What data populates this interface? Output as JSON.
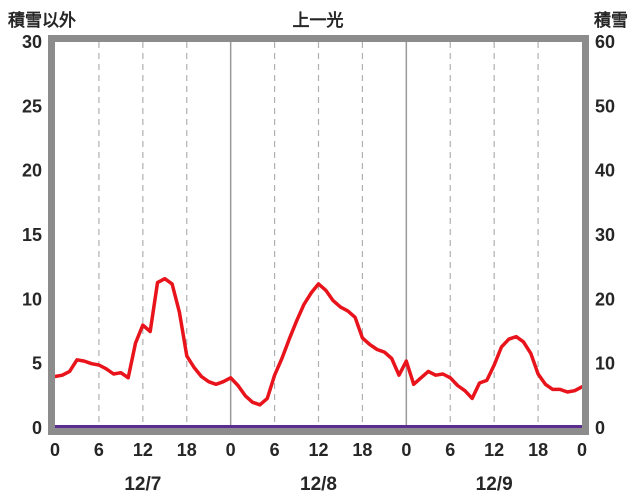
{
  "header": {
    "left_axis_title": "積雪以外",
    "chart_title": "上一光",
    "right_axis_title": "積雪"
  },
  "chart_data": {
    "type": "line",
    "title": "上一光",
    "left_axis": {
      "label": "積雪以外",
      "min": 0,
      "max": 30,
      "ticks": [
        0,
        5,
        10,
        15,
        20,
        25,
        30
      ]
    },
    "right_axis": {
      "label": "積雪",
      "min": 0,
      "max": 60,
      "ticks": [
        0,
        10,
        20,
        30,
        40,
        50,
        60
      ]
    },
    "x_axis": {
      "hours_total": 72,
      "tick_interval_hours": 6,
      "hour_tick_labels": [
        "0",
        "6",
        "12",
        "18",
        "0",
        "6",
        "12",
        "18",
        "0",
        "6",
        "12",
        "18",
        "0"
      ],
      "day_labels": [
        {
          "label": "12/7",
          "center_hour": 12
        },
        {
          "label": "12/8",
          "center_hour": 36
        },
        {
          "label": "12/9",
          "center_hour": 60
        }
      ]
    },
    "grid": {
      "vertical_dashed_every_6h": true,
      "vertical_solid_at_day_boundaries": true,
      "horizontal": false
    },
    "series": [
      {
        "name": "積雪以外",
        "axis": "left",
        "color": "#e8131b",
        "x_start_hour": 0,
        "x_step_hours": 1,
        "values": [
          4.0,
          4.1,
          4.4,
          5.3,
          5.2,
          5.0,
          4.9,
          4.6,
          4.2,
          4.3,
          3.9,
          6.6,
          8.0,
          7.5,
          11.3,
          11.6,
          11.2,
          9.0,
          5.6,
          4.7,
          4.0,
          3.6,
          3.4,
          3.6,
          3.9,
          3.3,
          2.5,
          2.0,
          1.8,
          2.3,
          4.1,
          5.4,
          6.9,
          8.3,
          9.6,
          10.5,
          11.2,
          10.7,
          9.9,
          9.4,
          9.1,
          8.6,
          7.0,
          6.5,
          6.1,
          5.9,
          5.4,
          4.1,
          5.2,
          3.4,
          3.9,
          4.4,
          4.1,
          4.2,
          3.9,
          3.3,
          2.9,
          2.3,
          3.5,
          3.7,
          4.9,
          6.3,
          6.9,
          7.1,
          6.7,
          5.8,
          4.2,
          3.4,
          3.0,
          3.0,
          2.8,
          2.9,
          3.2
        ]
      },
      {
        "name": "積雪",
        "axis": "right",
        "color": "#5b2d8e",
        "x_hours": [
          0,
          72
        ],
        "values": [
          0,
          0
        ]
      }
    ],
    "colors": {
      "border": "#8c8c8c",
      "grid_solid": "#9a9a9a",
      "grid_dashed": "#b0b0b0",
      "text": "#262626"
    }
  }
}
